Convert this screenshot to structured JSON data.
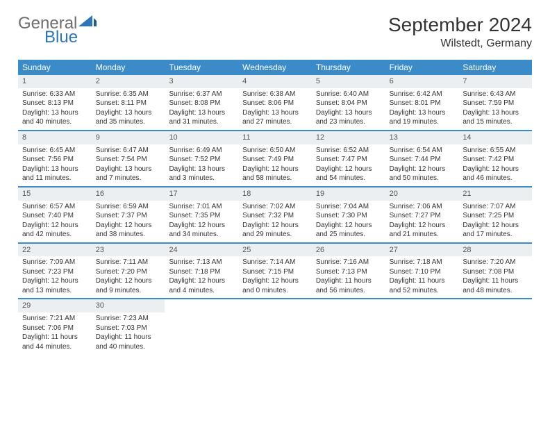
{
  "logo": {
    "text1": "General",
    "text2": "Blue"
  },
  "title": "September 2024",
  "location": "Wilstedt, Germany",
  "colors": {
    "header_bg": "#3b8bc9",
    "header_text": "#ffffff",
    "daynum_bg": "#eceff1",
    "row_border": "#3b8bc9",
    "logo_gray": "#6e6e6e",
    "logo_blue": "#2e75b6"
  },
  "weekdays": [
    "Sunday",
    "Monday",
    "Tuesday",
    "Wednesday",
    "Thursday",
    "Friday",
    "Saturday"
  ],
  "weeks": [
    [
      {
        "n": "1",
        "sunrise": "Sunrise: 6:33 AM",
        "sunset": "Sunset: 8:13 PM",
        "day1": "Daylight: 13 hours",
        "day2": "and 40 minutes."
      },
      {
        "n": "2",
        "sunrise": "Sunrise: 6:35 AM",
        "sunset": "Sunset: 8:11 PM",
        "day1": "Daylight: 13 hours",
        "day2": "and 35 minutes."
      },
      {
        "n": "3",
        "sunrise": "Sunrise: 6:37 AM",
        "sunset": "Sunset: 8:08 PM",
        "day1": "Daylight: 13 hours",
        "day2": "and 31 minutes."
      },
      {
        "n": "4",
        "sunrise": "Sunrise: 6:38 AM",
        "sunset": "Sunset: 8:06 PM",
        "day1": "Daylight: 13 hours",
        "day2": "and 27 minutes."
      },
      {
        "n": "5",
        "sunrise": "Sunrise: 6:40 AM",
        "sunset": "Sunset: 8:04 PM",
        "day1": "Daylight: 13 hours",
        "day2": "and 23 minutes."
      },
      {
        "n": "6",
        "sunrise": "Sunrise: 6:42 AM",
        "sunset": "Sunset: 8:01 PM",
        "day1": "Daylight: 13 hours",
        "day2": "and 19 minutes."
      },
      {
        "n": "7",
        "sunrise": "Sunrise: 6:43 AM",
        "sunset": "Sunset: 7:59 PM",
        "day1": "Daylight: 13 hours",
        "day2": "and 15 minutes."
      }
    ],
    [
      {
        "n": "8",
        "sunrise": "Sunrise: 6:45 AM",
        "sunset": "Sunset: 7:56 PM",
        "day1": "Daylight: 13 hours",
        "day2": "and 11 minutes."
      },
      {
        "n": "9",
        "sunrise": "Sunrise: 6:47 AM",
        "sunset": "Sunset: 7:54 PM",
        "day1": "Daylight: 13 hours",
        "day2": "and 7 minutes."
      },
      {
        "n": "10",
        "sunrise": "Sunrise: 6:49 AM",
        "sunset": "Sunset: 7:52 PM",
        "day1": "Daylight: 13 hours",
        "day2": "and 3 minutes."
      },
      {
        "n": "11",
        "sunrise": "Sunrise: 6:50 AM",
        "sunset": "Sunset: 7:49 PM",
        "day1": "Daylight: 12 hours",
        "day2": "and 58 minutes."
      },
      {
        "n": "12",
        "sunrise": "Sunrise: 6:52 AM",
        "sunset": "Sunset: 7:47 PM",
        "day1": "Daylight: 12 hours",
        "day2": "and 54 minutes."
      },
      {
        "n": "13",
        "sunrise": "Sunrise: 6:54 AM",
        "sunset": "Sunset: 7:44 PM",
        "day1": "Daylight: 12 hours",
        "day2": "and 50 minutes."
      },
      {
        "n": "14",
        "sunrise": "Sunrise: 6:55 AM",
        "sunset": "Sunset: 7:42 PM",
        "day1": "Daylight: 12 hours",
        "day2": "and 46 minutes."
      }
    ],
    [
      {
        "n": "15",
        "sunrise": "Sunrise: 6:57 AM",
        "sunset": "Sunset: 7:40 PM",
        "day1": "Daylight: 12 hours",
        "day2": "and 42 minutes."
      },
      {
        "n": "16",
        "sunrise": "Sunrise: 6:59 AM",
        "sunset": "Sunset: 7:37 PM",
        "day1": "Daylight: 12 hours",
        "day2": "and 38 minutes."
      },
      {
        "n": "17",
        "sunrise": "Sunrise: 7:01 AM",
        "sunset": "Sunset: 7:35 PM",
        "day1": "Daylight: 12 hours",
        "day2": "and 34 minutes."
      },
      {
        "n": "18",
        "sunrise": "Sunrise: 7:02 AM",
        "sunset": "Sunset: 7:32 PM",
        "day1": "Daylight: 12 hours",
        "day2": "and 29 minutes."
      },
      {
        "n": "19",
        "sunrise": "Sunrise: 7:04 AM",
        "sunset": "Sunset: 7:30 PM",
        "day1": "Daylight: 12 hours",
        "day2": "and 25 minutes."
      },
      {
        "n": "20",
        "sunrise": "Sunrise: 7:06 AM",
        "sunset": "Sunset: 7:27 PM",
        "day1": "Daylight: 12 hours",
        "day2": "and 21 minutes."
      },
      {
        "n": "21",
        "sunrise": "Sunrise: 7:07 AM",
        "sunset": "Sunset: 7:25 PM",
        "day1": "Daylight: 12 hours",
        "day2": "and 17 minutes."
      }
    ],
    [
      {
        "n": "22",
        "sunrise": "Sunrise: 7:09 AM",
        "sunset": "Sunset: 7:23 PM",
        "day1": "Daylight: 12 hours",
        "day2": "and 13 minutes."
      },
      {
        "n": "23",
        "sunrise": "Sunrise: 7:11 AM",
        "sunset": "Sunset: 7:20 PM",
        "day1": "Daylight: 12 hours",
        "day2": "and 9 minutes."
      },
      {
        "n": "24",
        "sunrise": "Sunrise: 7:13 AM",
        "sunset": "Sunset: 7:18 PM",
        "day1": "Daylight: 12 hours",
        "day2": "and 4 minutes."
      },
      {
        "n": "25",
        "sunrise": "Sunrise: 7:14 AM",
        "sunset": "Sunset: 7:15 PM",
        "day1": "Daylight: 12 hours",
        "day2": "and 0 minutes."
      },
      {
        "n": "26",
        "sunrise": "Sunrise: 7:16 AM",
        "sunset": "Sunset: 7:13 PM",
        "day1": "Daylight: 11 hours",
        "day2": "and 56 minutes."
      },
      {
        "n": "27",
        "sunrise": "Sunrise: 7:18 AM",
        "sunset": "Sunset: 7:10 PM",
        "day1": "Daylight: 11 hours",
        "day2": "and 52 minutes."
      },
      {
        "n": "28",
        "sunrise": "Sunrise: 7:20 AM",
        "sunset": "Sunset: 7:08 PM",
        "day1": "Daylight: 11 hours",
        "day2": "and 48 minutes."
      }
    ],
    [
      {
        "n": "29",
        "sunrise": "Sunrise: 7:21 AM",
        "sunset": "Sunset: 7:06 PM",
        "day1": "Daylight: 11 hours",
        "day2": "and 44 minutes."
      },
      {
        "n": "30",
        "sunrise": "Sunrise: 7:23 AM",
        "sunset": "Sunset: 7:03 PM",
        "day1": "Daylight: 11 hours",
        "day2": "and 40 minutes."
      },
      null,
      null,
      null,
      null,
      null
    ]
  ]
}
